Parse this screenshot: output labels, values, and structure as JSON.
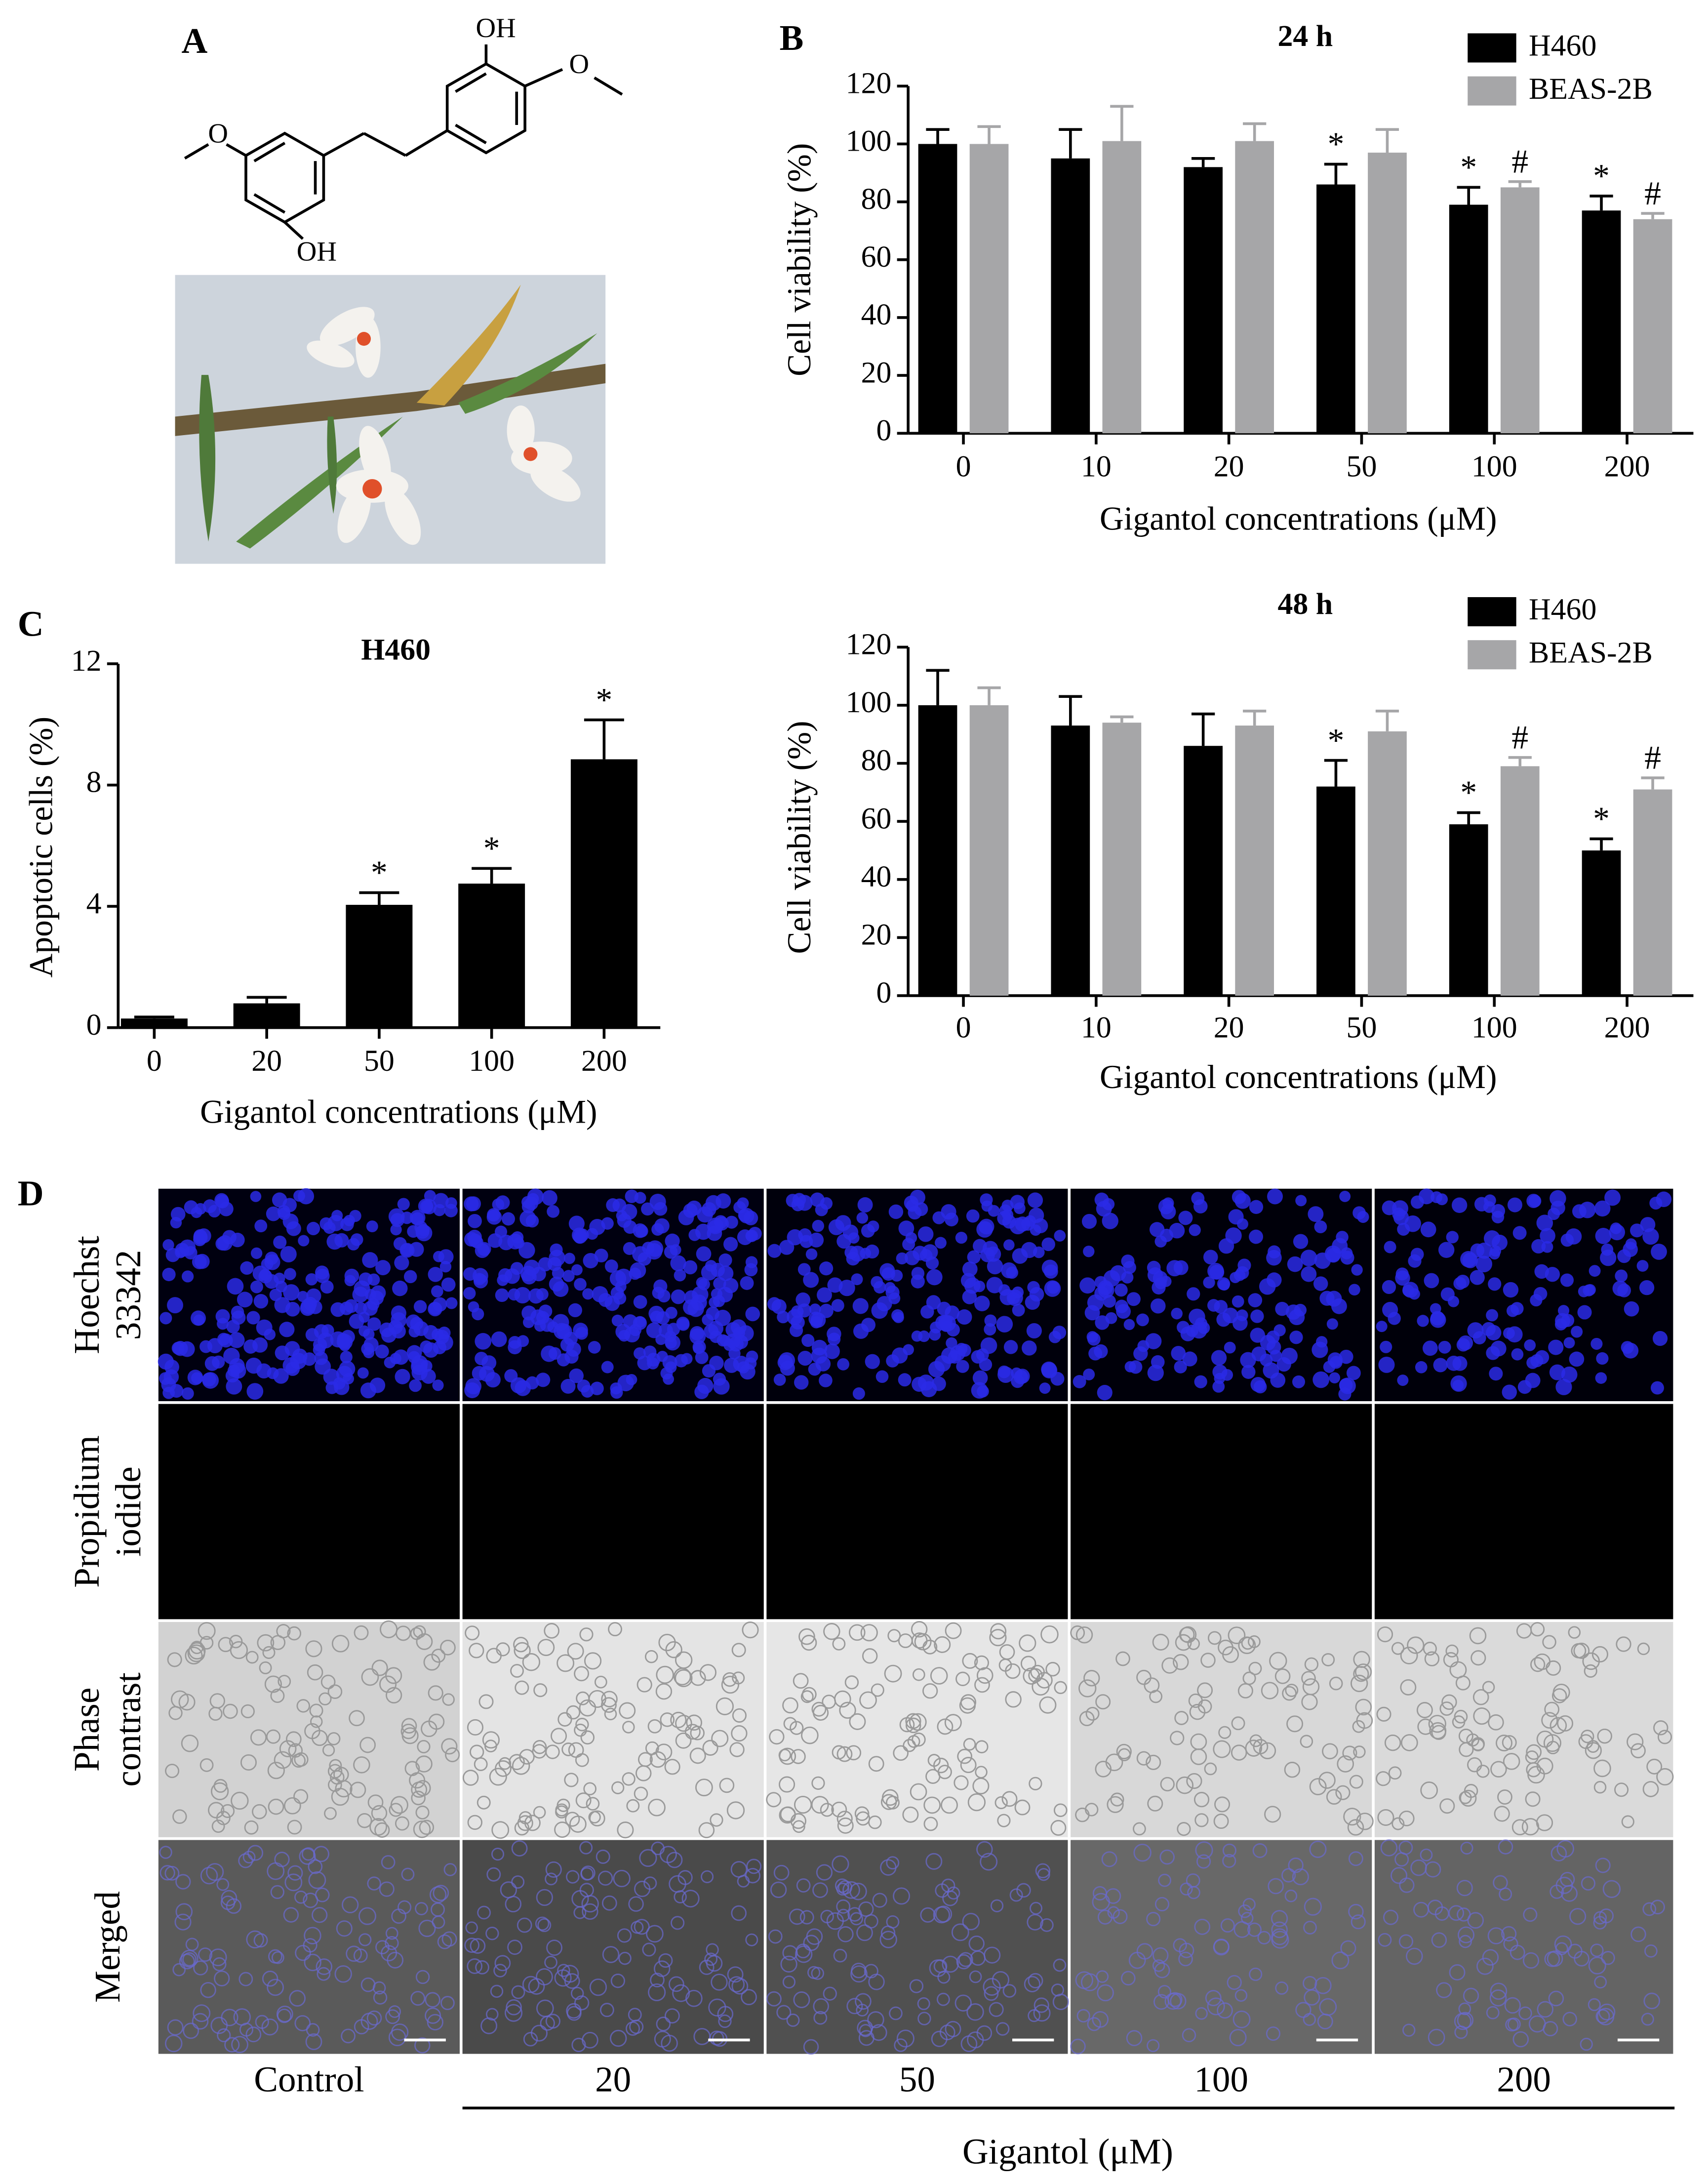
{
  "panels": [
    "A",
    "B",
    "C",
    "D"
  ],
  "structure": {
    "atoms": [
      "OH",
      "O",
      "O",
      "OH"
    ]
  },
  "chart_data": [
    {
      "type": "bar",
      "title": "24 h",
      "xlabel": "Gigantol concentrations (μM)",
      "ylabel": "Cell viability (%)",
      "categories": [
        "0",
        "10",
        "20",
        "50",
        "100",
        "200"
      ],
      "series": [
        {
          "name": "H460",
          "color": "#000000",
          "values": [
            100,
            95,
            92,
            86,
            79,
            77
          ],
          "errors": [
            5,
            10,
            3,
            7,
            6,
            5
          ],
          "markers": [
            null,
            null,
            null,
            "*",
            "*",
            "*"
          ]
        },
        {
          "name": "BEAS-2B",
          "color": "#a6a6a8",
          "values": [
            100,
            101,
            101,
            97,
            85,
            74
          ],
          "errors": [
            6,
            12,
            6,
            8,
            2,
            2
          ],
          "markers": [
            null,
            null,
            null,
            null,
            "#",
            "#"
          ]
        }
      ],
      "ylim": [
        0,
        120
      ],
      "yticks": [
        0,
        20,
        40,
        60,
        80,
        100,
        120
      ],
      "legend": "upper right"
    },
    {
      "type": "bar",
      "title": "48 h",
      "xlabel": "Gigantol concentrations (μM)",
      "ylabel": "Cell viability (%)",
      "categories": [
        "0",
        "10",
        "20",
        "50",
        "100",
        "200"
      ],
      "series": [
        {
          "name": "H460",
          "color": "#000000",
          "values": [
            100,
            93,
            86,
            72,
            59,
            50
          ],
          "errors": [
            12,
            10,
            11,
            9,
            4,
            4
          ],
          "markers": [
            null,
            null,
            null,
            "*",
            "*",
            "*"
          ]
        },
        {
          "name": "BEAS-2B",
          "color": "#a6a6a8",
          "values": [
            100,
            94,
            93,
            91,
            79,
            71
          ],
          "errors": [
            6,
            2,
            5,
            7,
            3,
            4
          ],
          "markers": [
            null,
            null,
            null,
            null,
            "#",
            "#"
          ]
        }
      ],
      "ylim": [
        0,
        120
      ],
      "yticks": [
        0,
        20,
        40,
        60,
        80,
        100,
        120
      ],
      "legend": "upper right"
    },
    {
      "type": "bar",
      "title": "H460",
      "xlabel": "Gigantol concentrations (μM)",
      "ylabel": "Apoptotic cells (%)",
      "categories": [
        "0",
        "20",
        "50",
        "100",
        "200"
      ],
      "values": [
        0.3,
        0.8,
        4.05,
        4.75,
        8.85
      ],
      "errors": [
        0.05,
        0.2,
        0.4,
        0.5,
        1.3
      ],
      "markers": [
        null,
        null,
        "*",
        "*",
        "*"
      ],
      "color": "#000000",
      "ylim": [
        0,
        12
      ],
      "yticks": [
        0,
        4,
        8,
        12
      ]
    }
  ],
  "micrographs": {
    "rows": [
      [
        "Hoechst",
        "33342"
      ],
      [
        "Propidium",
        "iodide"
      ],
      [
        "Phase",
        "contrast"
      ],
      [
        "Merged"
      ]
    ],
    "columns": [
      "Control",
      "20",
      "50",
      "100",
      "200"
    ],
    "xlabel": "Gigantol (μM)"
  }
}
